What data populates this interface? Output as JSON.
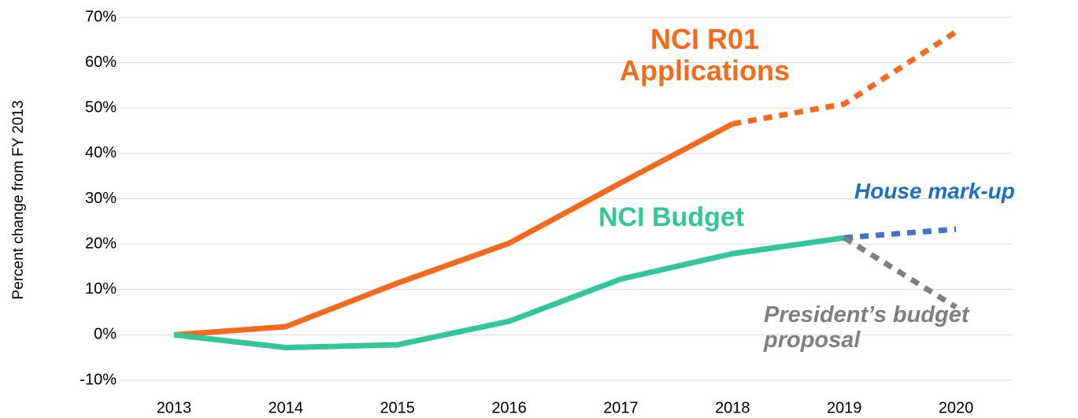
{
  "chart_data": {
    "type": "line",
    "y_axis_label": "Percent change from FY 2013",
    "categories": [
      "2013",
      "2014",
      "2015",
      "2016",
      "2017",
      "2018",
      "2019",
      "2020"
    ],
    "ylim": [
      -10,
      70
    ],
    "yticks": [
      {
        "value": -10,
        "label": "-10%"
      },
      {
        "value": 0,
        "label": "0%"
      },
      {
        "value": 10,
        "label": "10%"
      },
      {
        "value": 20,
        "label": "20%"
      },
      {
        "value": 30,
        "label": "30%"
      },
      {
        "value": 40,
        "label": "40%"
      },
      {
        "value": 50,
        "label": "50%"
      },
      {
        "value": 60,
        "label": "60%"
      },
      {
        "value": 70,
        "label": "70%"
      }
    ],
    "grid": true,
    "series": [
      {
        "name": "NCI R01 Applications",
        "color": "#f26b1d",
        "label_color": "#f26b1d",
        "values": [
          0,
          1.8,
          11.4,
          20.2,
          33.5,
          46.5,
          50.9,
          66.8
        ],
        "dashed_from": 5
      },
      {
        "name": "NCI Budget",
        "color": "#33c699",
        "label_color": "#33c699",
        "values": [
          0,
          -2.8,
          -2.2,
          3,
          12.3,
          17.9,
          21.4,
          null
        ]
      },
      {
        "name": "House mark-up",
        "color": "#4472c4",
        "label_color": "#1f70bd",
        "values": [
          null,
          null,
          null,
          null,
          null,
          null,
          21.4,
          23.3
        ],
        "dashed_from": 6
      },
      {
        "name": "President’s budget proposal",
        "color": "#7f7f7f",
        "label_color": "#7f7f7f",
        "values": [
          null,
          null,
          null,
          null,
          null,
          null,
          21.4,
          6.1
        ],
        "dashed_from": 6
      }
    ]
  }
}
